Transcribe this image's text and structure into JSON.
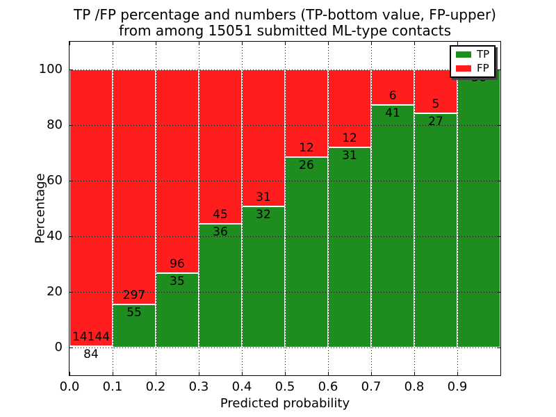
{
  "chart_data": {
    "type": "bar",
    "stacked": true,
    "normalized": "each bin scaled to 100%",
    "title_lines": [
      "TP /FP percentage and numbers (TP-bottom value, FP-upper)",
      "from among 15051 submitted ML-type contacts"
    ],
    "xlabel": "Predicted probability",
    "ylabel": "Percentage",
    "total_submitted": 15051,
    "xlim": [
      0.0,
      1.0
    ],
    "ylim": [
      -10,
      110
    ],
    "bin_width": 0.1,
    "xticks": [
      "0.0",
      "0.1",
      "0.2",
      "0.3",
      "0.4",
      "0.5",
      "0.6",
      "0.7",
      "0.8",
      "0.9"
    ],
    "yticks": [
      0,
      20,
      40,
      60,
      80,
      100
    ],
    "grid": "dotted black, on",
    "legend_position": "upper right",
    "series": [
      {
        "name": "TP",
        "color": "#1f8c1f",
        "counts": [
          84,
          55,
          35,
          36,
          32,
          26,
          31,
          41,
          27,
          36
        ]
      },
      {
        "name": "FP",
        "color": "#ff1d1d",
        "counts": [
          14144,
          297,
          96,
          45,
          31,
          12,
          12,
          6,
          5,
          0
        ]
      }
    ],
    "tp_percent_by_bin": [
      0.6,
      15.6,
      26.7,
      44.4,
      50.8,
      68.4,
      72.1,
      87.2,
      84.4,
      100.0
    ],
    "bar_label_rule": "TP count printed just below the green/red boundary, FP count just above it"
  },
  "colors": {
    "background": "#ffffff",
    "text": "#000000",
    "tp": "#1f8c1f",
    "fp": "#ff1d1d"
  }
}
